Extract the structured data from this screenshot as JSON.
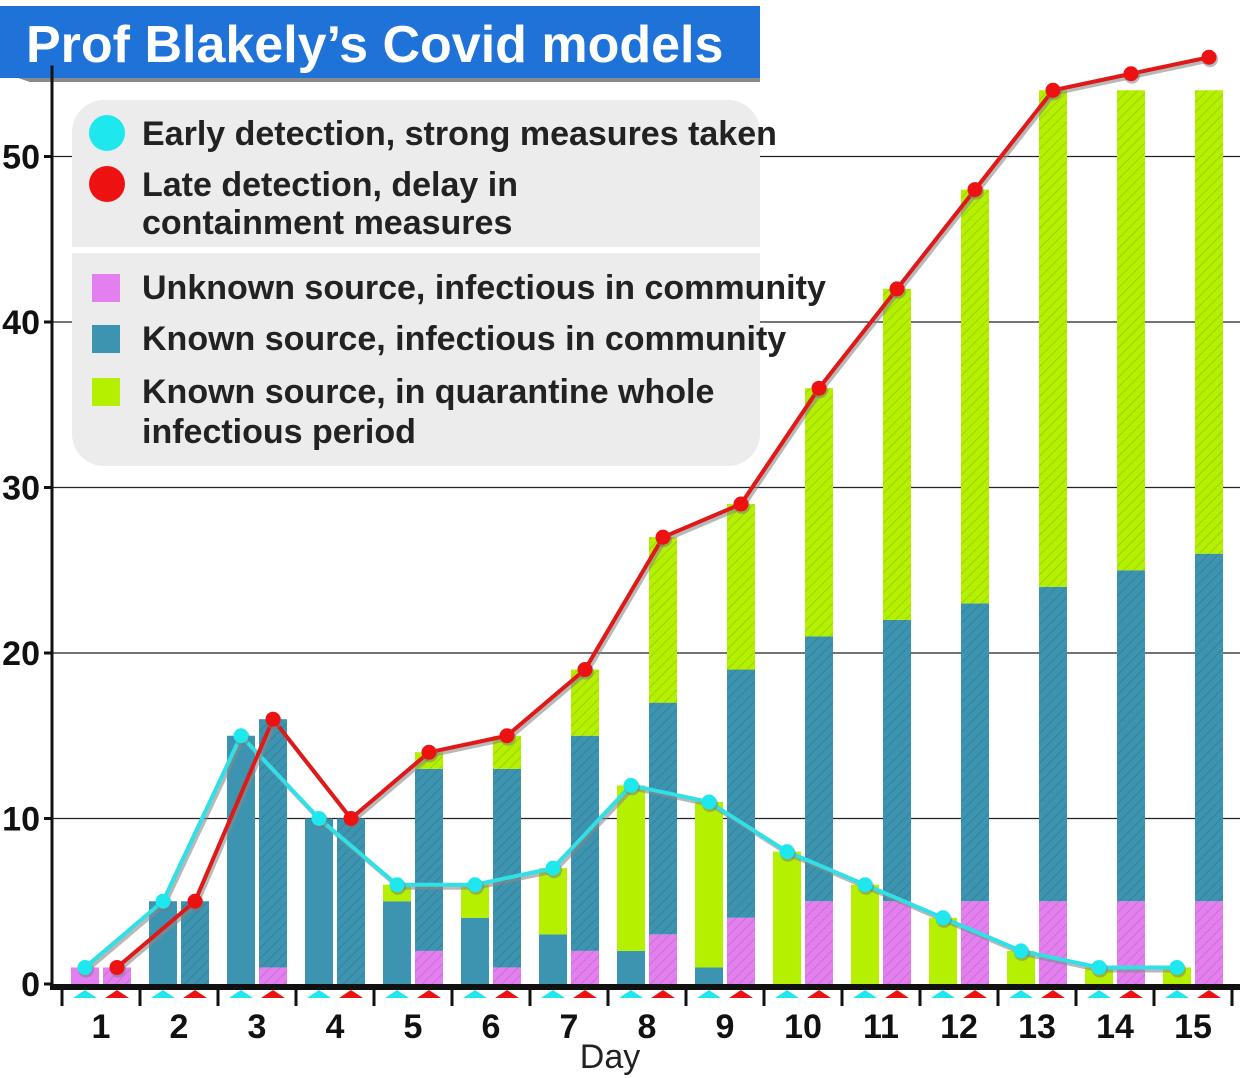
{
  "chart_data": {
    "type": "bar",
    "title": "Prof Blakely’s Covid models",
    "xlabel": "Day",
    "ylabel": "",
    "ylim": [
      0,
      54
    ],
    "yticks": [
      0,
      10,
      20,
      30,
      40,
      50
    ],
    "grid": true,
    "categories": [
      "1",
      "2",
      "3",
      "4",
      "5",
      "6",
      "7",
      "8",
      "9",
      "10",
      "11",
      "12",
      "13",
      "14",
      "15"
    ],
    "scenarios": [
      {
        "name": "Early detection, strong measures taken",
        "marker_color": "#1ee8ee",
        "line_color": "#2fe0e6",
        "bar_style": "solid",
        "series": [
          {
            "name": "Unknown source, infectious in community",
            "values": [
              1,
              0,
              0,
              0,
              0,
              0,
              0,
              0,
              0,
              0,
              0,
              0,
              0,
              0,
              0
            ]
          },
          {
            "name": "Known source, infectious in community",
            "values": [
              0,
              5,
              15,
              10,
              5,
              4,
              3,
              2,
              1,
              0,
              0,
              0,
              0,
              0,
              0
            ]
          },
          {
            "name": "Known source, in quarantine whole infectious period",
            "values": [
              0,
              0,
              0,
              0,
              1,
              2,
              4,
              10,
              10,
              8,
              6,
              4,
              2,
              1,
              1
            ]
          }
        ],
        "totals": [
          1,
          5,
          15,
          10,
          6,
          6,
          7,
          12,
          11,
          8,
          6,
          4,
          2,
          1,
          1
        ]
      },
      {
        "name": "Late detection, delay in containment measures",
        "marker_color": "#ee1111",
        "line_color": "#e01818",
        "bar_style": "hatched",
        "series": [
          {
            "name": "Unknown source, infectious in community",
            "values": [
              1,
              0,
              1,
              0,
              2,
              1,
              2,
              3,
              4,
              5,
              5,
              5,
              5,
              5,
              5
            ]
          },
          {
            "name": "Known source, infectious in community",
            "values": [
              0,
              5,
              15,
              10,
              11,
              12,
              13,
              14,
              15,
              16,
              17,
              18,
              19,
              20,
              21
            ]
          },
          {
            "name": "Known source, in quarantine whole infectious period",
            "values": [
              0,
              0,
              0,
              0,
              1,
              2,
              4,
              10,
              10,
              15,
              20,
              25,
              30,
              29,
              28
            ]
          }
        ],
        "totals": [
          1,
          5,
          16,
          10,
          14,
          15,
          19,
          27,
          29,
          36,
          42,
          48,
          54,
          55,
          56
        ]
      }
    ],
    "legend": {
      "placement": "top-left",
      "lines": [
        {
          "color": "#1ee8ee",
          "text": [
            "Early detection, strong measures taken"
          ]
        },
        {
          "color": "#ee1111",
          "text": [
            "Late detection, delay in",
            "containment measures"
          ]
        }
      ],
      "components": [
        {
          "color": "#e47ff0",
          "text": [
            "Unknown source, infectious in community"
          ]
        },
        {
          "color": "#3d94b0",
          "text": [
            "Known source, infectious in community"
          ]
        },
        {
          "color": "#b4f000",
          "text": [
            "Known source, in quarantine whole",
            "infectious period"
          ]
        }
      ]
    },
    "colors": {
      "unknown": "#e47ff0",
      "known": "#3d94b0",
      "quarantine": "#b4f000",
      "title_bg": "#1f73d8",
      "legend_bg": "#ececec"
    }
  }
}
